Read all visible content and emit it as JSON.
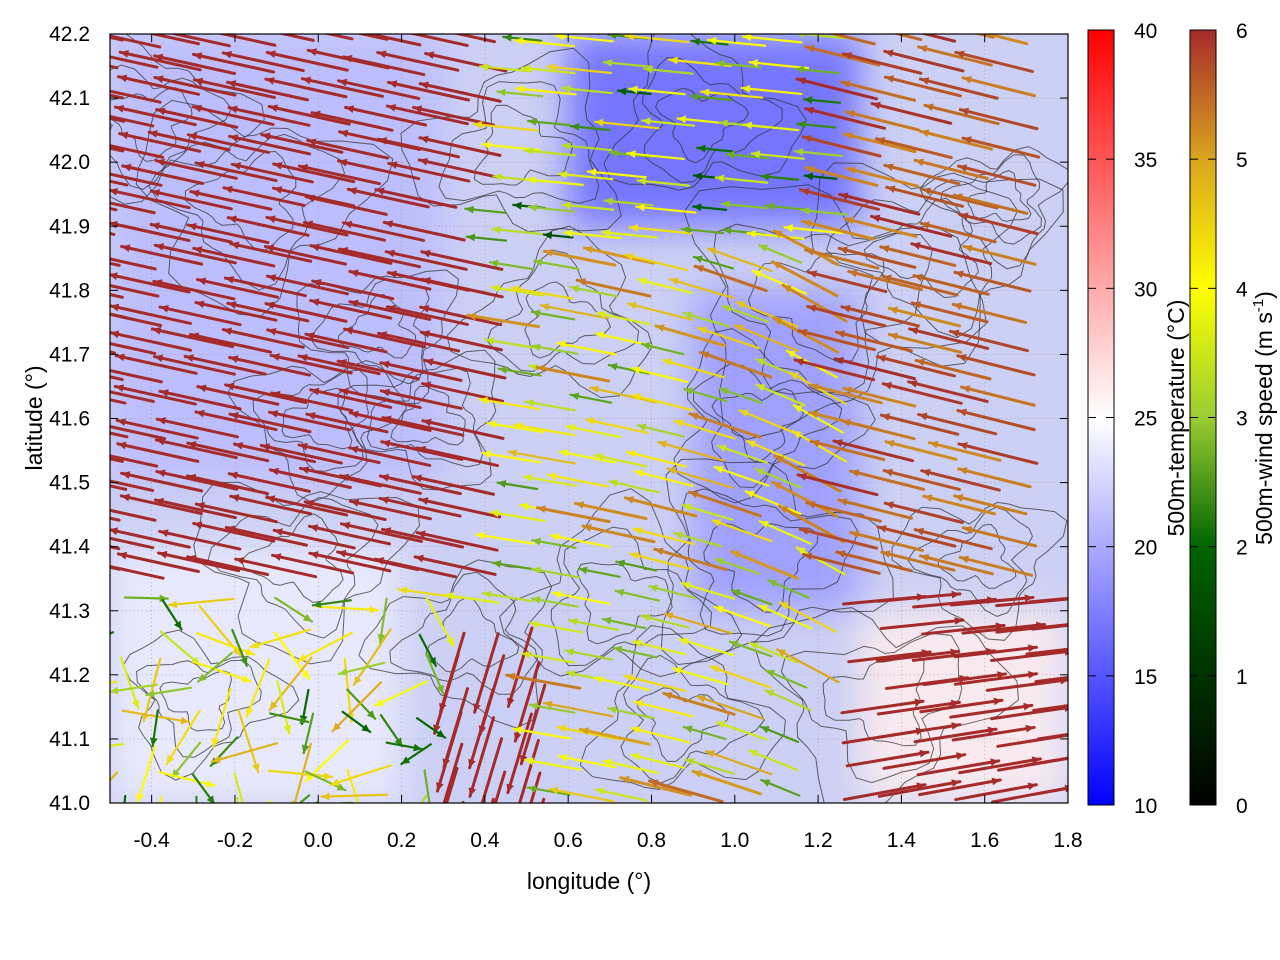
{
  "chart_data": {
    "type": "vector-field",
    "xlabel": "longitude (°)",
    "ylabel": "latitude (°)",
    "xlim": [
      -0.5,
      1.8
    ],
    "ylim": [
      41.0,
      42.2
    ],
    "x_ticks": [
      "-0.4",
      "-0.2",
      "0.0",
      "0.2",
      "0.4",
      "0.6",
      "0.8",
      "1.0",
      "1.2",
      "1.4",
      "1.6",
      "1.8"
    ],
    "x_tick_values": [
      -0.4,
      -0.2,
      0.0,
      0.2,
      0.4,
      0.6,
      0.8,
      1.0,
      1.2,
      1.4,
      1.6,
      1.8
    ],
    "y_ticks": [
      "41.0",
      "41.1",
      "41.2",
      "41.3",
      "41.4",
      "41.5",
      "41.6",
      "41.7",
      "41.8",
      "41.9",
      "42.0",
      "42.1",
      "42.2"
    ],
    "y_tick_values": [
      41.0,
      41.1,
      41.2,
      41.3,
      41.4,
      41.5,
      41.6,
      41.7,
      41.8,
      41.9,
      42.0,
      42.1,
      42.2
    ],
    "grid": true,
    "temperature_colorbar": {
      "label": "500m-temperature (°C)",
      "range": [
        10,
        40
      ],
      "ticks": [
        "10",
        "15",
        "20",
        "25",
        "30",
        "35",
        "40"
      ],
      "tick_values": [
        10,
        15,
        20,
        25,
        30,
        35,
        40
      ],
      "colors": [
        "#0000ff",
        "#ffffff",
        "#ff0000"
      ]
    },
    "wind_colorbar": {
      "label_main": "500m-wind speed (m s",
      "label_sup": "-1",
      "label_end": ")",
      "range": [
        0,
        6
      ],
      "ticks": [
        "0",
        "1",
        "2",
        "3",
        "4",
        "5",
        "6"
      ],
      "tick_values": [
        0,
        1,
        2,
        3,
        4,
        5,
        6
      ],
      "colors": [
        "#000000",
        "#006400",
        "#9acd32",
        "#ffff00",
        "#daa520",
        "#a52a2a"
      ]
    },
    "temperature_field": {
      "description_values_degC": [
        {
          "region": "north-central",
          "lon": [
            0.6,
            1.3
          ],
          "lat": [
            41.9,
            42.2
          ],
          "temp": 16
        },
        {
          "region": "central",
          "lon": [
            0.9,
            1.3
          ],
          "lat": [
            41.3,
            41.8
          ],
          "temp": 19
        },
        {
          "region": "west",
          "lon": [
            -0.5,
            0.3
          ],
          "lat": [
            41.5,
            42.2
          ],
          "temp": 21
        },
        {
          "region": "south-east",
          "lon": [
            1.3,
            1.8
          ],
          "lat": [
            41.0,
            41.3
          ],
          "temp": 26
        },
        {
          "region": "south-west",
          "lon": [
            -0.5,
            0.2
          ],
          "lat": [
            41.0,
            41.4
          ],
          "temp": 24
        }
      ]
    }
  }
}
